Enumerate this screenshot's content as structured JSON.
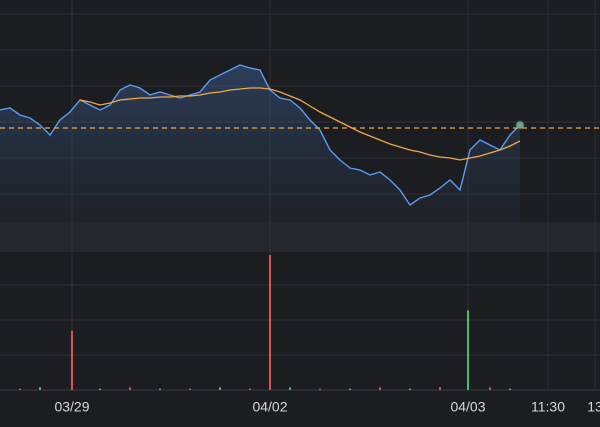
{
  "chart_data": [
    {
      "type": "line",
      "x": [
        0,
        2,
        4,
        6,
        8,
        10,
        12,
        14,
        16,
        18,
        20,
        22,
        24,
        26,
        28,
        30,
        32,
        34,
        36,
        38,
        40,
        42,
        44,
        46,
        48,
        50,
        52,
        54,
        56,
        58,
        60,
        62,
        64,
        66,
        68,
        70,
        72,
        74,
        76,
        78,
        80,
        82,
        84,
        86,
        88,
        90,
        92,
        94,
        96,
        98,
        100,
        102,
        104
      ],
      "series": [
        {
          "color": "#5b9cf0",
          "values": [
            60,
            61,
            57.5,
            56,
            52.5,
            47.5,
            55,
            59,
            65,
            62.5,
            60,
            62.5,
            70,
            72.5,
            71,
            67.5,
            69,
            67.5,
            66,
            67.5,
            69,
            75,
            77.5,
            80,
            82.5,
            81,
            80,
            70,
            66,
            65,
            61,
            55,
            50,
            40,
            35,
            31,
            30,
            27.5,
            29,
            25,
            20,
            12.5,
            16,
            17.5,
            21,
            25,
            20,
            40,
            45,
            42.5,
            40,
            47.5,
            52.5
          ]
        },
        {
          "color": "#f0a848",
          "values": [
            null,
            null,
            null,
            null,
            null,
            null,
            null,
            null,
            65,
            64,
            62.5,
            63.5,
            65,
            65.5,
            66,
            66,
            66.5,
            66.5,
            67,
            67,
            67.5,
            68.5,
            69,
            70,
            70.5,
            71,
            71,
            70.5,
            69,
            67,
            65,
            62,
            59,
            56.5,
            54,
            51.5,
            49,
            47,
            45,
            43,
            41.5,
            40,
            39,
            37.5,
            36.5,
            36,
            35,
            36,
            37,
            38.5,
            40,
            42,
            44.5
          ]
        }
      ],
      "reference_line": 51,
      "reference_color": "#f0a848",
      "xlim": [
        0,
        120
      ],
      "ylim": [
        0,
        100
      ],
      "xticks": [
        {
          "value": 14.4,
          "label": "03/29"
        },
        {
          "value": 54,
          "label": "04/02"
        },
        {
          "value": 93.6,
          "label": "04/03"
        },
        {
          "value": 109.6,
          "label": "11:30"
        },
        {
          "value": 119,
          "label": "13"
        }
      ]
    },
    {
      "type": "bar",
      "x": [
        4,
        8,
        14.4,
        20,
        26,
        32,
        38,
        44,
        50,
        54,
        58,
        64,
        70,
        76,
        82,
        88,
        93.6,
        98,
        102
      ],
      "values": [
        1,
        2,
        44,
        1,
        2,
        1,
        1,
        2,
        1,
        100,
        2,
        1,
        1,
        2,
        1,
        2,
        59,
        2,
        1
      ],
      "colors": [
        "#e05050",
        "#3fbf6f",
        "#e05050",
        "#3fbf6f",
        "#e05050",
        "#3fbf6f",
        "#e05050",
        "#3fbf6f",
        "#e05050",
        "#e05050",
        "#3fbf6f",
        "#e05050",
        "#3fbf6f",
        "#e05050",
        "#3fbf6f",
        "#e05050",
        "#3fbf6f",
        "#e05050",
        "#3fbf6f"
      ],
      "xlim": [
        0,
        120
      ],
      "ylim": [
        0,
        100
      ]
    }
  ]
}
